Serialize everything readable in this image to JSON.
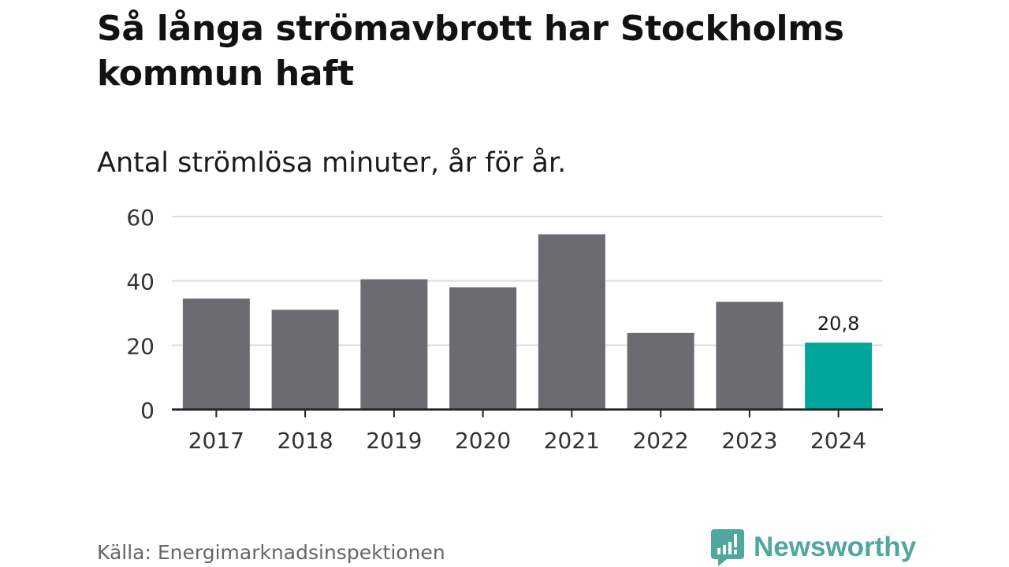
{
  "title": "Så långa strömavbrott har Stockholms kommun haft",
  "subtitle": "Antal strömlösa minuter, år för år.",
  "source": "Källa: Energimarknadsinspektionen",
  "brand": {
    "name": "Newsworthy",
    "color": "#4fa79f",
    "icon": "newsworthy-logo-icon"
  },
  "colors": {
    "bar": "#6c6b71",
    "highlight": "#00a69c",
    "grid": "#dddddd",
    "axis": "#222222"
  },
  "chart_data": {
    "type": "bar",
    "title": "Så långa strömavbrott har Stockholms kommun haft",
    "subtitle": "Antal strömlösa minuter, år för år.",
    "xlabel": "",
    "ylabel": "",
    "categories": [
      "2017",
      "2018",
      "2019",
      "2020",
      "2021",
      "2022",
      "2023",
      "2024"
    ],
    "values": [
      34.5,
      31,
      40.5,
      38,
      54.5,
      23.8,
      33.5,
      20.8
    ],
    "highlight_index": 7,
    "data_labels": [
      {
        "index": 7,
        "text": "20,8"
      }
    ],
    "ylim": [
      0,
      60
    ],
    "yticks": [
      0,
      20,
      40,
      60
    ],
    "grid": true
  }
}
